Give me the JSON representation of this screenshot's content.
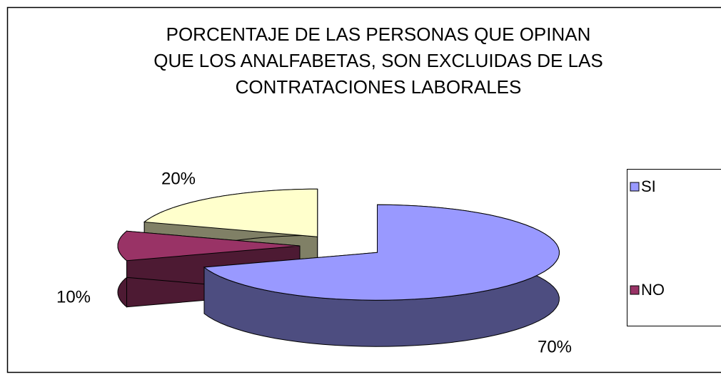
{
  "chart_data": {
    "type": "pie",
    "title": [
      "PORCENTAJE DE LAS PERSONAS QUE OPINAN",
      "QUE LOS ANALFABETAS, SON EXCLUIDAS DE LAS",
      "CONTRATACIONES LABORALES"
    ],
    "categories": [
      "SI",
      "NO",
      null
    ],
    "values": [
      70,
      10,
      20
    ],
    "value_labels": [
      "70%",
      "10%",
      "20%"
    ],
    "colors": [
      "#9999ff",
      "#993366",
      "#ffffcc"
    ],
    "exploded": true,
    "three_d": true,
    "legend": "right"
  }
}
